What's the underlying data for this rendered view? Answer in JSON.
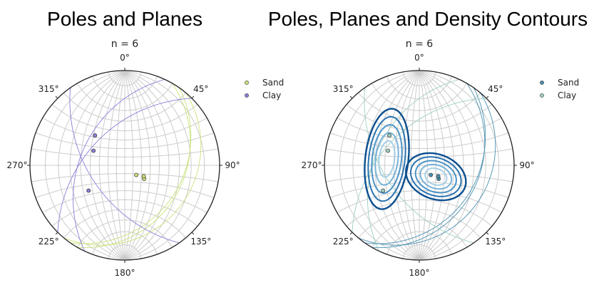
{
  "colors": {
    "sand_left": "#c9e27a",
    "clay_left": "#8a7fd9",
    "sand_right": "#4a90b0",
    "clay_right": "#9dcfc0",
    "contour_sand": [
      "#0b4f8f",
      "#2a73b0",
      "#4c93c6",
      "#78b3d8",
      "#a6cfe6"
    ],
    "contour_clay": [
      "#0b4f8f",
      "#2a73b0",
      "#4c93c6",
      "#78b3d8",
      "#a6cfe6"
    ]
  },
  "chart_data": [
    {
      "type": "scatter",
      "title": "Poles and Planes",
      "subtitle": "n = 6",
      "azimuth_labels": [
        "0°",
        "45°",
        "90°",
        "135°",
        "180°",
        "225°",
        "270°",
        "315°"
      ],
      "legend": {
        "placement": "top-right",
        "entries": [
          "Sand",
          "Clay"
        ]
      },
      "series": [
        {
          "name": "Sand",
          "poles": [
            [
              130,
              72
            ],
            [
              125,
              62
            ],
            [
              120,
              64
            ]
          ]
        },
        {
          "name": "Clay",
          "poles": [
            [
              295,
              50
            ],
            [
              315,
              42
            ],
            [
              235,
              40
            ]
          ]
        }
      ]
    },
    {
      "type": "scatter",
      "title": "Poles, Planes and Density Contours",
      "subtitle": "n = 6",
      "azimuth_labels": [
        "0°",
        "45°",
        "90°",
        "135°",
        "180°",
        "225°",
        "270°",
        "315°"
      ],
      "legend": {
        "placement": "top-right",
        "entries": [
          "Sand",
          "Clay"
        ]
      },
      "series": [
        {
          "name": "Sand",
          "poles": [
            [
              130,
              72
            ],
            [
              125,
              62
            ],
            [
              120,
              64
            ]
          ]
        },
        {
          "name": "Clay",
          "poles": [
            [
              295,
              50
            ],
            [
              315,
              42
            ],
            [
              235,
              40
            ]
          ]
        }
      ],
      "contour_levels": 5
    }
  ]
}
